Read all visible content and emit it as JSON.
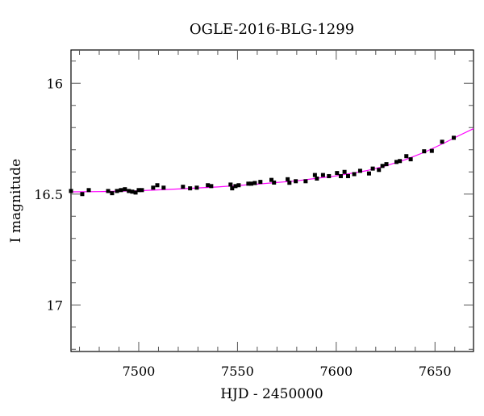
{
  "chart_data": {
    "type": "scatter",
    "title": "OGLE-2016-BLG-1299",
    "xlabel": "HJD - 2450000",
    "ylabel": "I magnitude",
    "xlim": [
      7465.7,
      7669.5
    ],
    "ylim": [
      17.21,
      15.85
    ],
    "y_inverted": true,
    "x_ticks": [
      7500,
      7550,
      7600,
      7650
    ],
    "x_tick_labels": [
      "7500",
      "7550",
      "7600",
      "7650"
    ],
    "x_minor_step": 10,
    "y_ticks": [
      16,
      16.5,
      17
    ],
    "y_tick_labels": [
      "16",
      "16.5",
      "17"
    ],
    "y_minor_step": 0.1,
    "grid": false,
    "point_color": "#000000",
    "model_color": "#ff00ff",
    "data_points": [
      [
        7465.7,
        16.486
      ],
      [
        7471.4,
        16.5
      ],
      [
        7474.7,
        16.482
      ],
      [
        7484.5,
        16.486
      ],
      [
        7486.5,
        16.496
      ],
      [
        7489.0,
        16.486
      ],
      [
        7491.0,
        16.482
      ],
      [
        7493.0,
        16.478
      ],
      [
        7495.0,
        16.486
      ],
      [
        7496.7,
        16.489
      ],
      [
        7498.4,
        16.493
      ],
      [
        7500.0,
        16.482
      ],
      [
        7501.6,
        16.482
      ],
      [
        7507.3,
        16.471
      ],
      [
        7509.4,
        16.46
      ],
      [
        7512.6,
        16.471
      ],
      [
        7522.4,
        16.467
      ],
      [
        7526.0,
        16.474
      ],
      [
        7529.4,
        16.471
      ],
      [
        7535.0,
        16.46
      ],
      [
        7536.7,
        16.464
      ],
      [
        7546.5,
        16.457
      ],
      [
        7547.3,
        16.474
      ],
      [
        7549.0,
        16.464
      ],
      [
        7550.6,
        16.46
      ],
      [
        7555.5,
        16.453
      ],
      [
        7557.0,
        16.453
      ],
      [
        7558.8,
        16.45
      ],
      [
        7561.6,
        16.445
      ],
      [
        7567.2,
        16.436
      ],
      [
        7568.5,
        16.448
      ],
      [
        7575.4,
        16.433
      ],
      [
        7576.3,
        16.449
      ],
      [
        7579.5,
        16.442
      ],
      [
        7584.5,
        16.442
      ],
      [
        7589.2,
        16.414
      ],
      [
        7590.2,
        16.43
      ],
      [
        7593.3,
        16.414
      ],
      [
        7596.3,
        16.419
      ],
      [
        7600.4,
        16.405
      ],
      [
        7602.3,
        16.419
      ],
      [
        7604.2,
        16.4
      ],
      [
        7606.0,
        16.419
      ],
      [
        7609.1,
        16.41
      ],
      [
        7612.1,
        16.395
      ],
      [
        7616.6,
        16.407
      ],
      [
        7618.5,
        16.385
      ],
      [
        7621.6,
        16.391
      ],
      [
        7623.4,
        16.373
      ],
      [
        7625.4,
        16.365
      ],
      [
        7630.5,
        16.355
      ],
      [
        7632.2,
        16.351
      ],
      [
        7635.5,
        16.329
      ],
      [
        7637.7,
        16.343
      ],
      [
        7644.5,
        16.307
      ],
      [
        7648.4,
        16.305
      ],
      [
        7653.6,
        16.264
      ],
      [
        7659.5,
        16.246
      ]
    ],
    "error": 0.008,
    "model_curve": [
      [
        7465.7,
        16.49
      ],
      [
        7480,
        16.489
      ],
      [
        7500,
        16.485
      ],
      [
        7520,
        16.477
      ],
      [
        7540,
        16.468
      ],
      [
        7560,
        16.455
      ],
      [
        7580,
        16.44
      ],
      [
        7600,
        16.418
      ],
      [
        7615,
        16.395
      ],
      [
        7625,
        16.373
      ],
      [
        7635,
        16.345
      ],
      [
        7645,
        16.31
      ],
      [
        7655,
        16.268
      ],
      [
        7662,
        16.237
      ],
      [
        7669.5,
        16.205
      ]
    ]
  }
}
